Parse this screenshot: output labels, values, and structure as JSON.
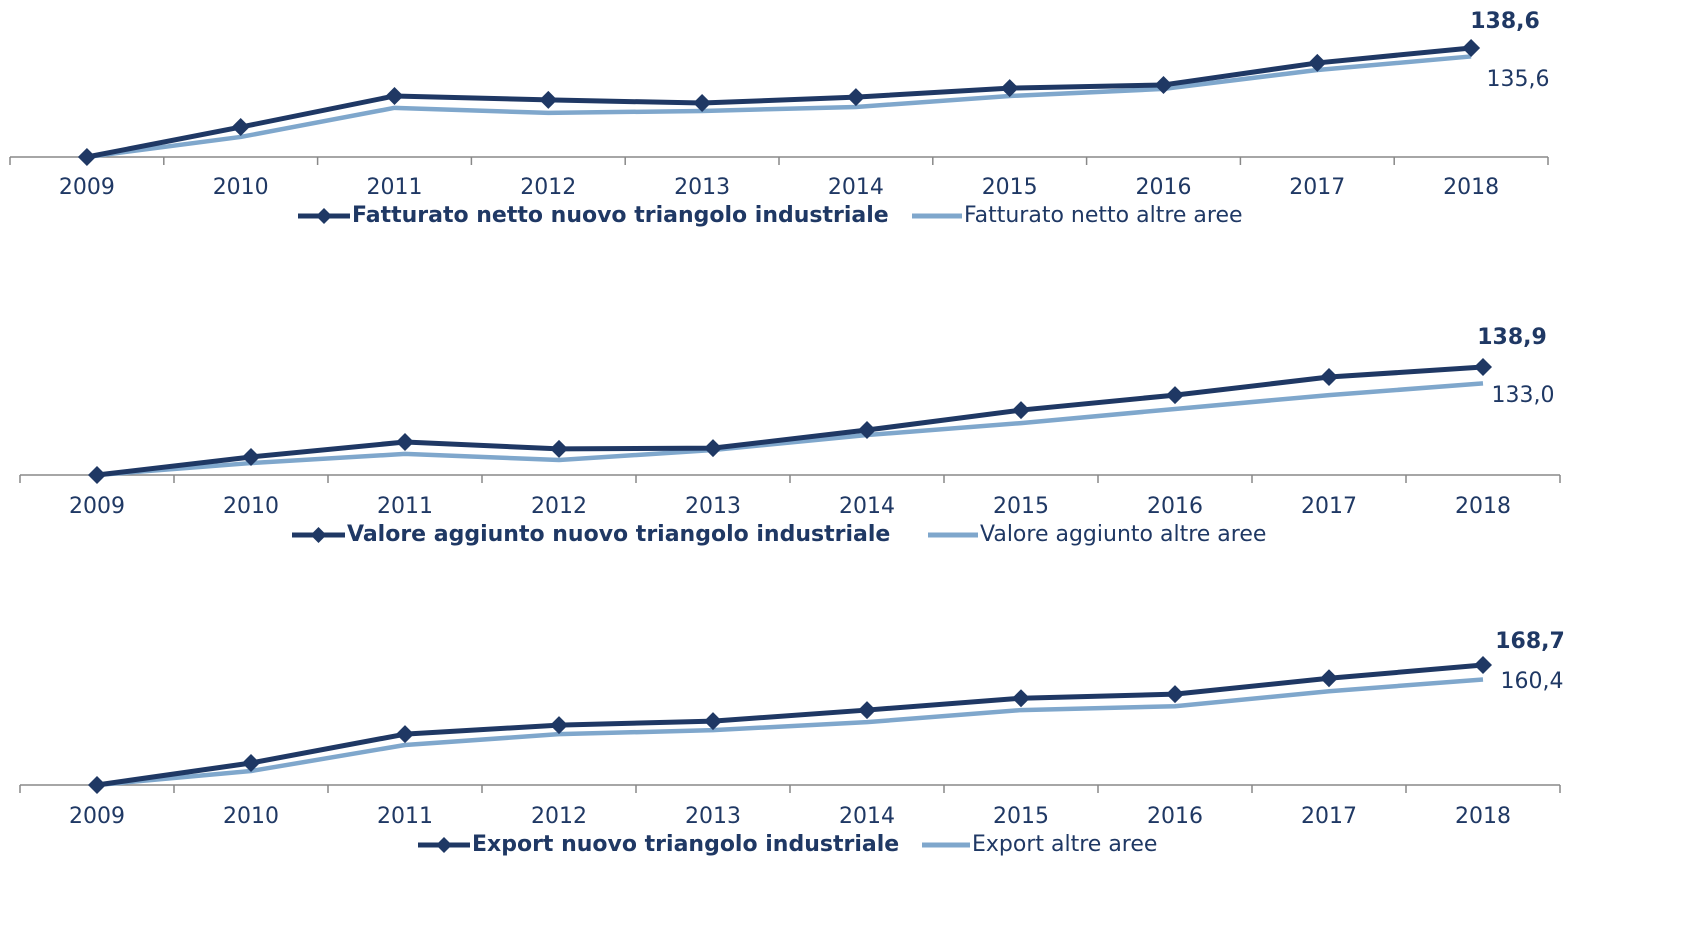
{
  "chart_data": [
    {
      "type": "line",
      "categories": [
        "2009",
        "2010",
        "2011",
        "2012",
        "2013",
        "2014",
        "2015",
        "2016",
        "2017",
        "2018"
      ],
      "ylim": [
        100,
        140
      ],
      "series": [
        {
          "name": "Fatturato netto nuovo triangolo industriale",
          "color": "#1f3864",
          "values": [
            100,
            110.6,
            121.6,
            120.2,
            119.1,
            121.2,
            124.4,
            125.5,
            133.3,
            138.6
          ],
          "value_labels": [
            null,
            null,
            null,
            null,
            null,
            null,
            null,
            null,
            null,
            "138,6"
          ]
        },
        {
          "name": "Fatturato netto altre aree",
          "color": "#7fa7cc",
          "values": [
            100,
            107.1,
            117.4,
            115.6,
            116.3,
            117.7,
            121.6,
            124.1,
            130.8,
            135.6
          ],
          "value_labels": [
            null,
            null,
            null,
            null,
            null,
            null,
            null,
            null,
            null,
            "135,6"
          ]
        }
      ]
    },
    {
      "type": "line",
      "categories": [
        "2009",
        "2010",
        "2011",
        "2012",
        "2013",
        "2014",
        "2015",
        "2016",
        "2017",
        "2018"
      ],
      "ylim": [
        100,
        140
      ],
      "series": [
        {
          "name": "Valore aggiunto nuovo triangolo industriale",
          "color": "#1f3864",
          "values": [
            100,
            106.5,
            111.9,
            109.4,
            109.7,
            116.2,
            123.4,
            128.8,
            135.3,
            138.9
          ],
          "value_labels": [
            null,
            null,
            null,
            null,
            null,
            null,
            null,
            null,
            null,
            "138,9"
          ]
        },
        {
          "name": "Valore aggiunto altre aree",
          "color": "#7fa7cc",
          "values": [
            100,
            104.3,
            107.6,
            105.4,
            109.0,
            114.4,
            118.7,
            123.8,
            128.8,
            133.0
          ],
          "value_labels": [
            null,
            null,
            null,
            null,
            null,
            null,
            null,
            null,
            null,
            "133,0"
          ]
        }
      ]
    },
    {
      "type": "line",
      "categories": [
        "2009",
        "2010",
        "2011",
        "2012",
        "2013",
        "2014",
        "2015",
        "2016",
        "2017",
        "2018"
      ],
      "ylim": [
        100,
        175
      ],
      "series": [
        {
          "name": "Export nuovo triangolo industriale",
          "color": "#1f3864",
          "values": [
            100,
            112.6,
            129.1,
            134.3,
            136.6,
            142.9,
            149.7,
            152.0,
            161.1,
            168.7
          ],
          "value_labels": [
            null,
            null,
            null,
            null,
            null,
            null,
            null,
            null,
            null,
            "168,7"
          ]
        },
        {
          "name": "Export altre aree",
          "color": "#7fa7cc",
          "values": [
            100,
            108.0,
            122.9,
            129.1,
            131.4,
            136.0,
            142.9,
            145.1,
            153.7,
            160.4
          ],
          "value_labels": [
            null,
            null,
            null,
            null,
            null,
            null,
            null,
            null,
            null,
            "160,4"
          ]
        }
      ]
    }
  ]
}
